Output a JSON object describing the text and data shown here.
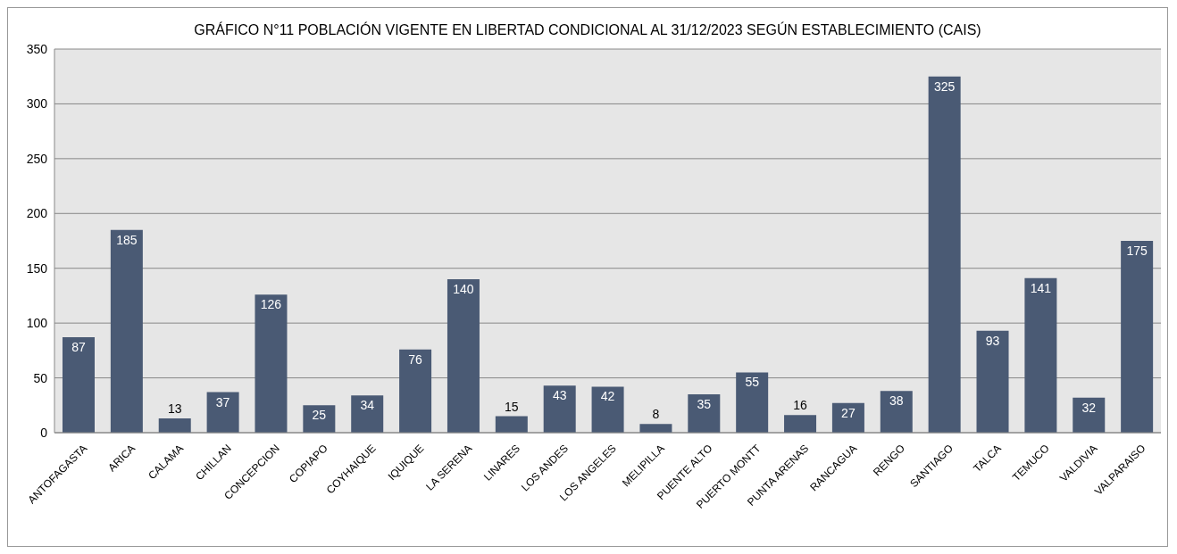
{
  "chart_data": {
    "type": "bar",
    "title": "GRÁFICO N°11 POBLACIÓN VIGENTE EN LIBERTAD CONDICIONAL AL 31/12/2023 SEGÚN ESTABLECIMIENTO (CAIS)",
    "categories": [
      "ANTOFAGASTA",
      "ARICA",
      "CALAMA",
      "CHILLAN",
      "CONCEPCION",
      "COPIAPO",
      "COYHAIQUE",
      "IQUIQUE",
      "LA SERENA",
      "LINARES",
      "LOS ANDES",
      "LOS ANGELES",
      "MELIPILLA",
      "PUENTE ALTO",
      "PUERTO MONTT",
      "PUNTA ARENAS",
      "RANCAGUA",
      "RENGO",
      "SANTIAGO",
      "TALCA",
      "TEMUCO",
      "VALDIVIA",
      "VALPARAISO"
    ],
    "values": [
      87,
      185,
      13,
      37,
      126,
      25,
      34,
      76,
      140,
      15,
      43,
      42,
      8,
      35,
      55,
      16,
      27,
      38,
      325,
      93,
      141,
      32,
      175
    ],
    "color": "#4a5a74",
    "ylim": [
      0,
      350
    ],
    "yticks": [
      0,
      50,
      100,
      150,
      200,
      250,
      300,
      350
    ],
    "grid": "y",
    "data_labels": true
  }
}
